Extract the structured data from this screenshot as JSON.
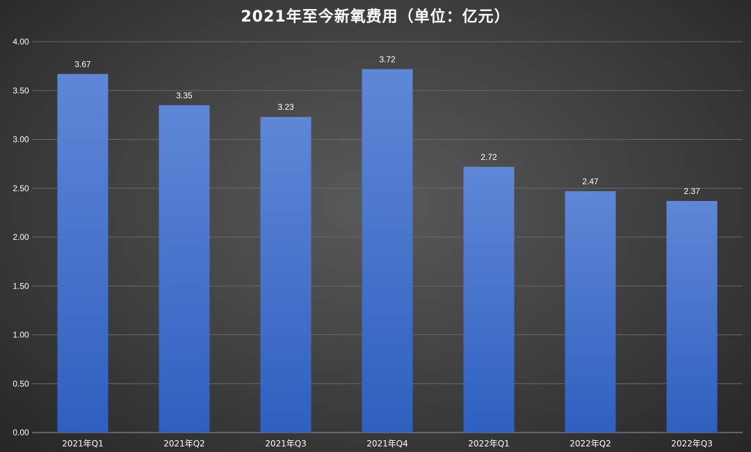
{
  "chart_data": {
    "type": "bar",
    "title": "2021年至今新氧费用（单位：亿元）",
    "categories": [
      "2021年Q1",
      "2021年Q2",
      "2021年Q3",
      "2021年Q4",
      "2022年Q1",
      "2022年Q2",
      "2022年Q3"
    ],
    "values": [
      3.67,
      3.35,
      3.23,
      3.72,
      2.72,
      2.47,
      2.37
    ],
    "data_labels": [
      "3.67",
      "3.35",
      "3.23",
      "3.72",
      "2.72",
      "2.47",
      "2.37"
    ],
    "ylim": [
      0,
      4.0
    ],
    "yticks": [
      "0.00",
      "0.50",
      "1.00",
      "1.50",
      "2.00",
      "2.50",
      "3.00",
      "3.50",
      "4.00"
    ],
    "grid": true,
    "legend": "none",
    "bar_color_top": "#5f87d6",
    "bar_color_bottom": "#2f5fc0"
  }
}
